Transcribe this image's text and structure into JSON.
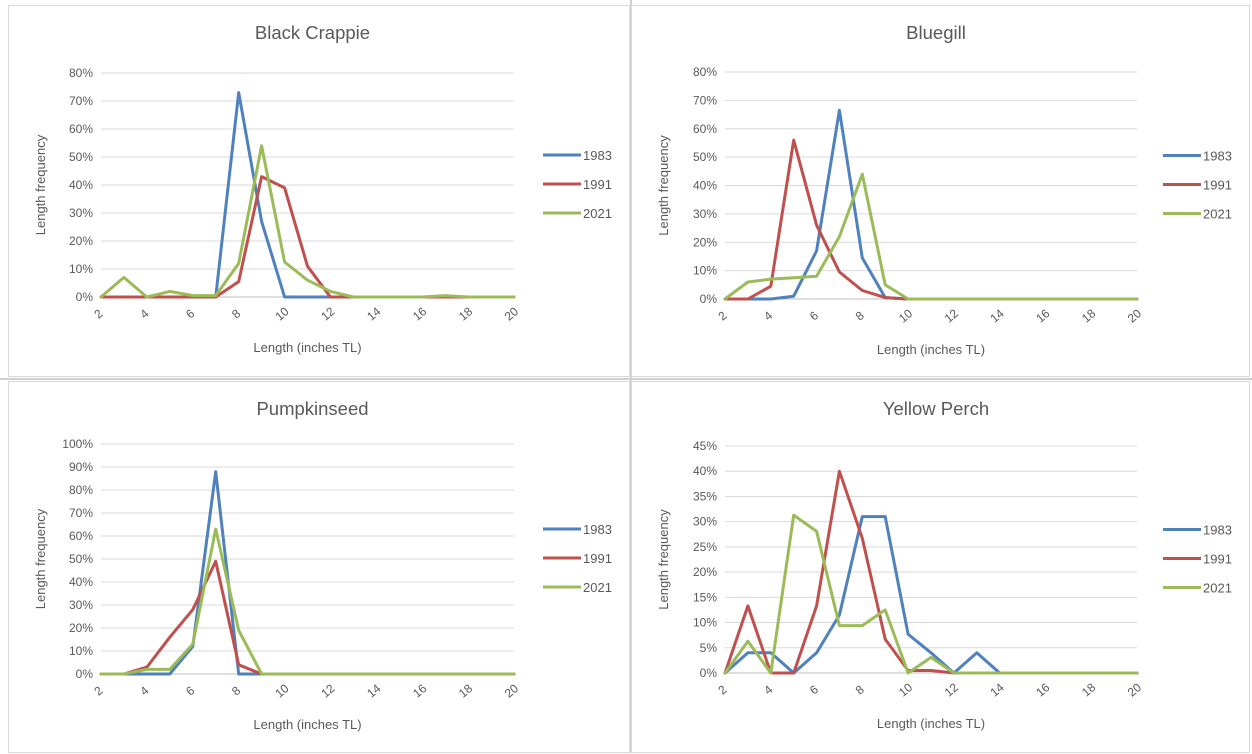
{
  "colors": {
    "1983": "#4f81bd",
    "1991": "#c0504d",
    "2021": "#9bbb59",
    "grid": "#d9d9d9",
    "text": "#595959"
  },
  "chart_data": [
    {
      "type": "line",
      "title": "Black Crappie",
      "xlabel": "Length (inches TL)",
      "ylabel": "Length frequency",
      "x": [
        2,
        3,
        4,
        5,
        6,
        7,
        8,
        9,
        10,
        11,
        12,
        13,
        14,
        15,
        16,
        17,
        18,
        19,
        20
      ],
      "x_ticks": [
        "2",
        "4",
        "6",
        "8",
        "10",
        "12",
        "14",
        "16",
        "18",
        "20"
      ],
      "y_ticks": [
        "0%",
        "10%",
        "20%",
        "30%",
        "40%",
        "50%",
        "60%",
        "70%",
        "80%"
      ],
      "ylim": [
        0,
        0.8
      ],
      "grid": true,
      "legend": "right",
      "series": [
        {
          "name": "1983",
          "values": [
            0,
            0,
            0,
            0,
            0,
            0,
            0.73,
            0.27,
            0,
            0,
            0,
            0,
            0,
            0,
            0,
            0,
            0,
            0,
            0
          ]
        },
        {
          "name": "1991",
          "values": [
            0,
            0,
            0,
            0,
            0,
            0,
            0.055,
            0.43,
            0.39,
            0.11,
            0,
            0,
            0,
            0,
            0,
            0,
            0,
            0,
            0
          ]
        },
        {
          "name": "2021",
          "values": [
            0,
            0.07,
            0,
            0.02,
            0.005,
            0.005,
            0.12,
            0.54,
            0.125,
            0.06,
            0.02,
            0,
            0,
            0,
            0,
            0.005,
            0,
            0,
            0
          ]
        }
      ]
    },
    {
      "type": "line",
      "title": "Bluegill",
      "xlabel": "Length (inches TL)",
      "ylabel": "Length frequency",
      "x": [
        2,
        3,
        4,
        5,
        6,
        7,
        8,
        9,
        10,
        11,
        12,
        13,
        14,
        15,
        16,
        17,
        18,
        19,
        20
      ],
      "x_ticks": [
        "2",
        "4",
        "6",
        "8",
        "10",
        "12",
        "14",
        "16",
        "18",
        "20"
      ],
      "y_ticks": [
        "0%",
        "10%",
        "20%",
        "30%",
        "40%",
        "50%",
        "60%",
        "70%",
        "80%"
      ],
      "ylim": [
        0,
        0.8
      ],
      "grid": true,
      "legend": "right",
      "series": [
        {
          "name": "1983",
          "values": [
            0,
            0,
            0,
            0.01,
            0.17,
            0.665,
            0.145,
            0.005,
            0,
            0,
            0,
            0,
            0,
            0,
            0,
            0,
            0,
            0,
            0
          ]
        },
        {
          "name": "1991",
          "values": [
            0,
            0,
            0.045,
            0.56,
            0.26,
            0.095,
            0.03,
            0.005,
            0,
            0,
            0,
            0,
            0,
            0,
            0,
            0,
            0,
            0,
            0
          ]
        },
        {
          "name": "2021",
          "values": [
            0,
            0.06,
            0.07,
            0.075,
            0.08,
            0.22,
            0.44,
            0.05,
            0,
            0,
            0,
            0,
            0,
            0,
            0,
            0,
            0,
            0,
            0
          ]
        }
      ]
    },
    {
      "type": "line",
      "title": "Pumpkinseed",
      "xlabel": "Length (inches TL)",
      "ylabel": "Length frequency",
      "x": [
        2,
        3,
        4,
        5,
        6,
        7,
        8,
        9,
        10,
        11,
        12,
        13,
        14,
        15,
        16,
        17,
        18,
        19,
        20
      ],
      "x_ticks": [
        "2",
        "4",
        "6",
        "8",
        "10",
        "12",
        "14",
        "16",
        "18",
        "20"
      ],
      "y_ticks": [
        "0%",
        "10%",
        "20%",
        "30%",
        "40%",
        "50%",
        "60%",
        "70%",
        "80%",
        "90%",
        "100%"
      ],
      "ylim": [
        0,
        1.0
      ],
      "grid": true,
      "legend": "right",
      "series": [
        {
          "name": "1983",
          "values": [
            0,
            0,
            0,
            0,
            0.12,
            0.88,
            0,
            0,
            0,
            0,
            0,
            0,
            0,
            0,
            0,
            0,
            0,
            0,
            0
          ]
        },
        {
          "name": "1991",
          "values": [
            0,
            0,
            0.03,
            0.16,
            0.28,
            0.49,
            0.04,
            0,
            0,
            0,
            0,
            0,
            0,
            0,
            0,
            0,
            0,
            0,
            0
          ]
        },
        {
          "name": "2021",
          "values": [
            0,
            0,
            0.02,
            0.02,
            0.13,
            0.63,
            0.19,
            0,
            0,
            0,
            0,
            0,
            0,
            0,
            0,
            0,
            0,
            0,
            0
          ]
        }
      ]
    },
    {
      "type": "line",
      "title": "Yellow Perch",
      "xlabel": "Length (inches TL)",
      "ylabel": "Length frequency",
      "x": [
        2,
        3,
        4,
        5,
        6,
        7,
        8,
        9,
        10,
        11,
        12,
        13,
        14,
        15,
        16,
        17,
        18,
        19,
        20
      ],
      "x_ticks": [
        "2",
        "4",
        "6",
        "8",
        "10",
        "12",
        "14",
        "16",
        "18",
        "20"
      ],
      "y_ticks": [
        "0%",
        "5%",
        "10%",
        "15%",
        "20%",
        "25%",
        "30%",
        "35%",
        "40%",
        "45%"
      ],
      "ylim": [
        0,
        0.45
      ],
      "grid": true,
      "legend": "right",
      "series": [
        {
          "name": "1983",
          "values": [
            0,
            0.04,
            0.04,
            0,
            0.04,
            0.115,
            0.31,
            0.31,
            0.077,
            0.04,
            0,
            0.04,
            0,
            0,
            0,
            0,
            0,
            0,
            0
          ]
        },
        {
          "name": "1991",
          "values": [
            0,
            0.133,
            0,
            0,
            0.133,
            0.4,
            0.267,
            0.067,
            0.005,
            0.005,
            0,
            0,
            0,
            0,
            0,
            0,
            0,
            0,
            0
          ]
        },
        {
          "name": "2021",
          "values": [
            0,
            0.063,
            0,
            0.313,
            0.281,
            0.094,
            0.094,
            0.125,
            0,
            0.031,
            0,
            0,
            0,
            0,
            0,
            0,
            0,
            0,
            0
          ]
        }
      ]
    }
  ]
}
